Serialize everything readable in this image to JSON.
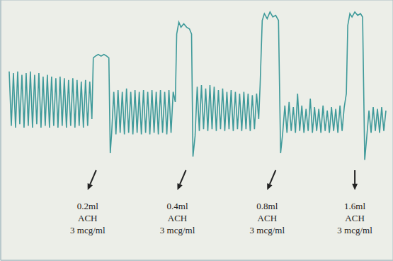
{
  "chart_data": {
    "type": "line",
    "tick_labels": false,
    "grid": true,
    "color": "#3f9a9a",
    "xlim": [
      0,
      555
    ],
    "ylim": [
      -53,
      100
    ],
    "xticks": [
      0,
      36,
      72,
      108,
      144,
      180,
      216,
      252,
      288,
      324,
      360,
      396,
      432,
      468,
      504,
      540
    ],
    "yticks": [
      -50,
      -35,
      -20,
      -5,
      10,
      25,
      40,
      55,
      70,
      85,
      100
    ],
    "x": [
      12,
      15,
      18,
      21,
      24,
      27,
      30,
      33,
      36,
      39,
      42,
      45,
      48,
      51,
      54,
      57,
      60,
      63,
      66,
      69,
      72,
      75,
      78,
      81,
      84,
      87,
      90,
      93,
      96,
      99,
      102,
      105,
      108,
      111,
      114,
      117,
      120,
      123,
      126,
      129,
      131,
      134,
      138,
      142,
      146,
      150,
      153,
      155,
      157,
      160,
      163,
      166,
      169,
      172,
      175,
      178,
      181,
      184,
      187,
      190,
      193,
      196,
      199,
      202,
      205,
      208,
      211,
      214,
      217,
      220,
      223,
      226,
      229,
      232,
      235,
      238,
      241,
      244,
      247,
      249,
      252,
      255,
      259,
      263,
      267,
      270,
      272,
      275,
      278,
      281,
      284,
      287,
      290,
      293,
      296,
      299,
      302,
      305,
      308,
      311,
      314,
      317,
      320,
      323,
      326,
      329,
      332,
      335,
      338,
      341,
      344,
      347,
      350,
      353,
      356,
      359,
      362,
      365,
      367,
      370,
      373,
      377,
      381,
      385,
      389,
      393,
      396,
      399,
      402,
      405,
      408,
      411,
      414,
      417,
      420,
      423,
      426,
      429,
      432,
      435,
      438,
      441,
      444,
      447,
      450,
      453,
      456,
      459,
      462,
      465,
      468,
      471,
      474,
      477,
      480,
      483,
      486,
      489,
      491,
      494,
      497,
      501,
      505,
      509,
      512,
      515,
      518,
      521,
      524,
      527,
      530,
      533,
      536,
      539,
      542,
      545
    ],
    "values": [
      58,
      26,
      57,
      25,
      58,
      27,
      56,
      25,
      57,
      26,
      58,
      25,
      56,
      27,
      57,
      25,
      55,
      26,
      56,
      25,
      55,
      26,
      54,
      25,
      55,
      26,
      54,
      25,
      53,
      26,
      54,
      25,
      53,
      26,
      52,
      25,
      53,
      26,
      52,
      30,
      66,
      67,
      68,
      67,
      68,
      67,
      66,
      10,
      22,
      46,
      21,
      47,
      22,
      46,
      21,
      48,
      22,
      46,
      21,
      47,
      22,
      46,
      21,
      47,
      22,
      46,
      21,
      47,
      22,
      46,
      21,
      47,
      22,
      46,
      21,
      47,
      22,
      46,
      40,
      80,
      87,
      84,
      86,
      84,
      83,
      80,
      8,
      20,
      49,
      23,
      50,
      24,
      48,
      23,
      50,
      24,
      49,
      23,
      47,
      24,
      48,
      23,
      46,
      24,
      47,
      23,
      46,
      24,
      45,
      23,
      46,
      24,
      45,
      23,
      44,
      24,
      45,
      30,
      50,
      88,
      92,
      89,
      93,
      90,
      91,
      88,
      10,
      22,
      38,
      22,
      40,
      23,
      37,
      22,
      45,
      23,
      38,
      22,
      36,
      23,
      42,
      22,
      37,
      23,
      36,
      22,
      38,
      23,
      35,
      22,
      37,
      23,
      36,
      22,
      38,
      23,
      37,
      45,
      85,
      92,
      90,
      93,
      91,
      92,
      90,
      6,
      20,
      35,
      22,
      37,
      23,
      36,
      22,
      37,
      23,
      35
    ],
    "annotations": [
      {
        "x": 123,
        "text": [
          "0.2ml",
          "ACH",
          "3 mcg/ml"
        ]
      },
      {
        "x": 250,
        "text": [
          "0.4ml",
          "ACH",
          "3 mcg/ml"
        ]
      },
      {
        "x": 377,
        "text": [
          "0.8ml",
          "ACH",
          "3 mcg/ml"
        ]
      },
      {
        "x": 501,
        "text": [
          "1.6ml",
          "ACH",
          "3 mcg/ml"
        ]
      }
    ]
  }
}
